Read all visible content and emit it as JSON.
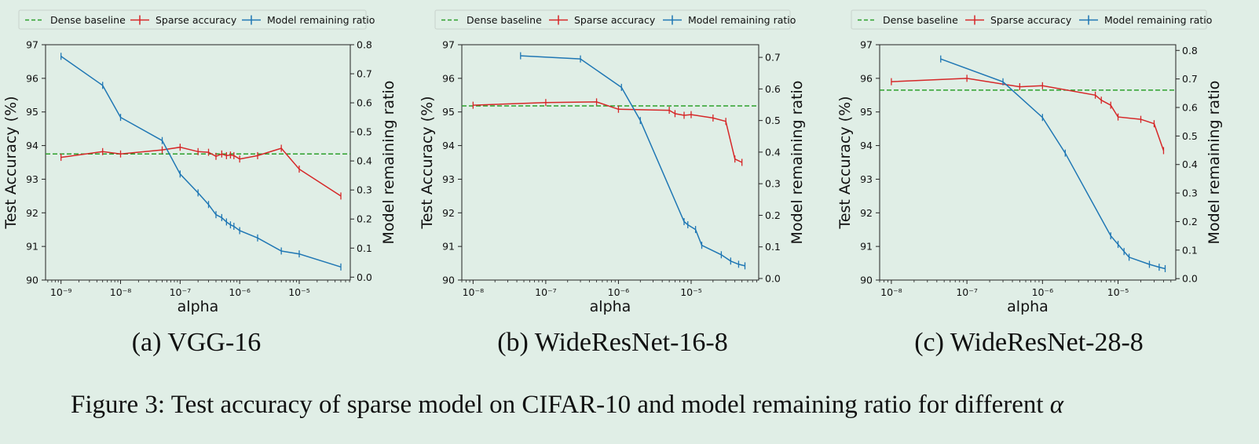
{
  "legend": {
    "dense": "Dense baseline",
    "sparse": "Sparse accuracy",
    "ratio": "Model remaining ratio"
  },
  "colors": {
    "dense": "#2ca02c",
    "sparse": "#d62728",
    "ratio": "#1f77b4"
  },
  "figure_caption": {
    "text": "Figure 3: Test accuracy of sparse model on CIFAR-10 and model remaining ratio for different",
    "symbol": "α"
  },
  "chart_data": [
    {
      "type": "line",
      "caption": "(a) VGG-16",
      "xlabel": "alpha",
      "ylabel": "Test Accuracy (%)",
      "y2label": "Model remaining ratio",
      "xscale": "log",
      "xlim": [
        5.5e-10,
        7.2e-05
      ],
      "ylim": [
        90,
        97
      ],
      "y2lim": [
        -0.01,
        0.8
      ],
      "x_ticks": [
        1e-09,
        1e-08,
        1e-07,
        1e-06,
        1e-05
      ],
      "x_tick_labels": [
        "10⁻⁹",
        "10⁻⁸",
        "10⁻⁷",
        "10⁻⁶",
        "10⁻⁵"
      ],
      "y_ticks": [
        90,
        91,
        92,
        93,
        94,
        95,
        96,
        97
      ],
      "y2_ticks": [
        0.0,
        0.1,
        0.2,
        0.3,
        0.4,
        0.5,
        0.6,
        0.7,
        0.8
      ],
      "dense_baseline": 93.75,
      "legend_position": "top",
      "series": [
        {
          "name": "Sparse accuracy",
          "axis": "left",
          "x": [
            1e-09,
            5e-09,
            1e-08,
            5e-08,
            1e-07,
            2e-07,
            3e-07,
            4e-07,
            5e-07,
            6e-07,
            7e-07,
            8e-07,
            1e-06,
            2e-06,
            5e-06,
            1e-05,
            5e-05
          ],
          "values": [
            93.65,
            93.82,
            93.75,
            93.87,
            93.95,
            93.82,
            93.8,
            93.68,
            93.75,
            93.7,
            93.72,
            93.7,
            93.6,
            93.7,
            93.92,
            93.3,
            92.5
          ]
        },
        {
          "name": "Model remaining ratio",
          "axis": "right",
          "x": [
            1e-09,
            5e-09,
            1e-08,
            5e-08,
            1e-07,
            2e-07,
            3e-07,
            4e-07,
            5e-07,
            6e-07,
            7e-07,
            8e-07,
            1e-06,
            2e-06,
            5e-06,
            1e-05,
            5e-05
          ],
          "values": [
            0.76,
            0.66,
            0.55,
            0.47,
            0.355,
            0.29,
            0.25,
            0.215,
            0.205,
            0.19,
            0.18,
            0.175,
            0.16,
            0.135,
            0.09,
            0.08,
            0.035
          ]
        }
      ]
    },
    {
      "type": "line",
      "caption": "(b) WideResNet-16-8",
      "xlabel": "alpha",
      "ylabel": "Test Accuracy (%)",
      "y2label": "Model remaining ratio",
      "xscale": "log",
      "xlim": [
        7e-09,
        8.5e-05
      ],
      "ylim": [
        90,
        97
      ],
      "y2lim": [
        -0.005,
        0.74
      ],
      "x_ticks": [
        1e-08,
        1e-07,
        1e-06,
        1e-05
      ],
      "x_tick_labels": [
        "10⁻⁸",
        "10⁻⁷",
        "10⁻⁶",
        "10⁻⁵"
      ],
      "y_ticks": [
        90,
        91,
        92,
        93,
        94,
        95,
        96,
        97
      ],
      "y2_ticks": [
        0.0,
        0.1,
        0.2,
        0.3,
        0.4,
        0.5,
        0.6,
        0.7
      ],
      "dense_baseline": 95.18,
      "legend_position": "top",
      "series": [
        {
          "name": "Sparse accuracy",
          "axis": "left",
          "x": [
            1e-08,
            1e-07,
            5e-07,
            1e-06,
            5e-06,
            6e-06,
            8e-06,
            1e-05,
            2e-05,
            3e-05,
            4e-05,
            5e-05
          ],
          "values": [
            95.2,
            95.28,
            95.3,
            95.08,
            95.05,
            94.95,
            94.9,
            94.92,
            94.82,
            94.72,
            93.6,
            93.5
          ]
        },
        {
          "name": "Model remaining ratio",
          "axis": "right",
          "x": [
            4.5e-08,
            3e-07,
            1.1e-06,
            2e-06,
            8e-06,
            9e-06,
            1.15e-05,
            1.4e-05,
            2.6e-05,
            3.5e-05,
            4.5e-05,
            5.5e-05
          ],
          "values": [
            0.705,
            0.695,
            0.605,
            0.5,
            0.18,
            0.17,
            0.155,
            0.105,
            0.075,
            0.055,
            0.045,
            0.04
          ]
        }
      ]
    },
    {
      "type": "line",
      "caption": "(c) WideResNet-28-8",
      "xlabel": "alpha",
      "ylabel": "Test Accuracy (%)",
      "y2label": "Model remaining ratio",
      "xscale": "log",
      "xlim": [
        7e-09,
        5.8e-05
      ],
      "ylim": [
        90,
        97
      ],
      "y2lim": [
        -0.005,
        0.82
      ],
      "x_ticks": [
        1e-08,
        1e-07,
        1e-06,
        1e-05
      ],
      "x_tick_labels": [
        "10⁻⁸",
        "10⁻⁷",
        "10⁻⁶",
        "10⁻⁵"
      ],
      "y_ticks": [
        90,
        91,
        92,
        93,
        94,
        95,
        96,
        97
      ],
      "y2_ticks": [
        0.0,
        0.1,
        0.2,
        0.3,
        0.4,
        0.5,
        0.6,
        0.7,
        0.8
      ],
      "dense_baseline": 95.65,
      "legend_position": "top",
      "series": [
        {
          "name": "Sparse accuracy",
          "axis": "left",
          "x": [
            1e-08,
            1e-07,
            5e-07,
            1e-06,
            5e-06,
            6e-06,
            8e-06,
            1e-05,
            2e-05,
            3e-05,
            4e-05
          ],
          "values": [
            95.9,
            96.0,
            95.75,
            95.78,
            95.5,
            95.35,
            95.2,
            94.85,
            94.78,
            94.65,
            93.85
          ]
        },
        {
          "name": "Model remaining ratio",
          "axis": "right",
          "x": [
            4.5e-08,
            3e-07,
            1e-06,
            2e-06,
            8e-06,
            1e-05,
            1.2e-05,
            1.4e-05,
            2.6e-05,
            3.5e-05,
            4.2e-05
          ],
          "values": [
            0.77,
            0.69,
            0.565,
            0.44,
            0.15,
            0.12,
            0.095,
            0.075,
            0.05,
            0.04,
            0.035
          ]
        }
      ]
    }
  ]
}
